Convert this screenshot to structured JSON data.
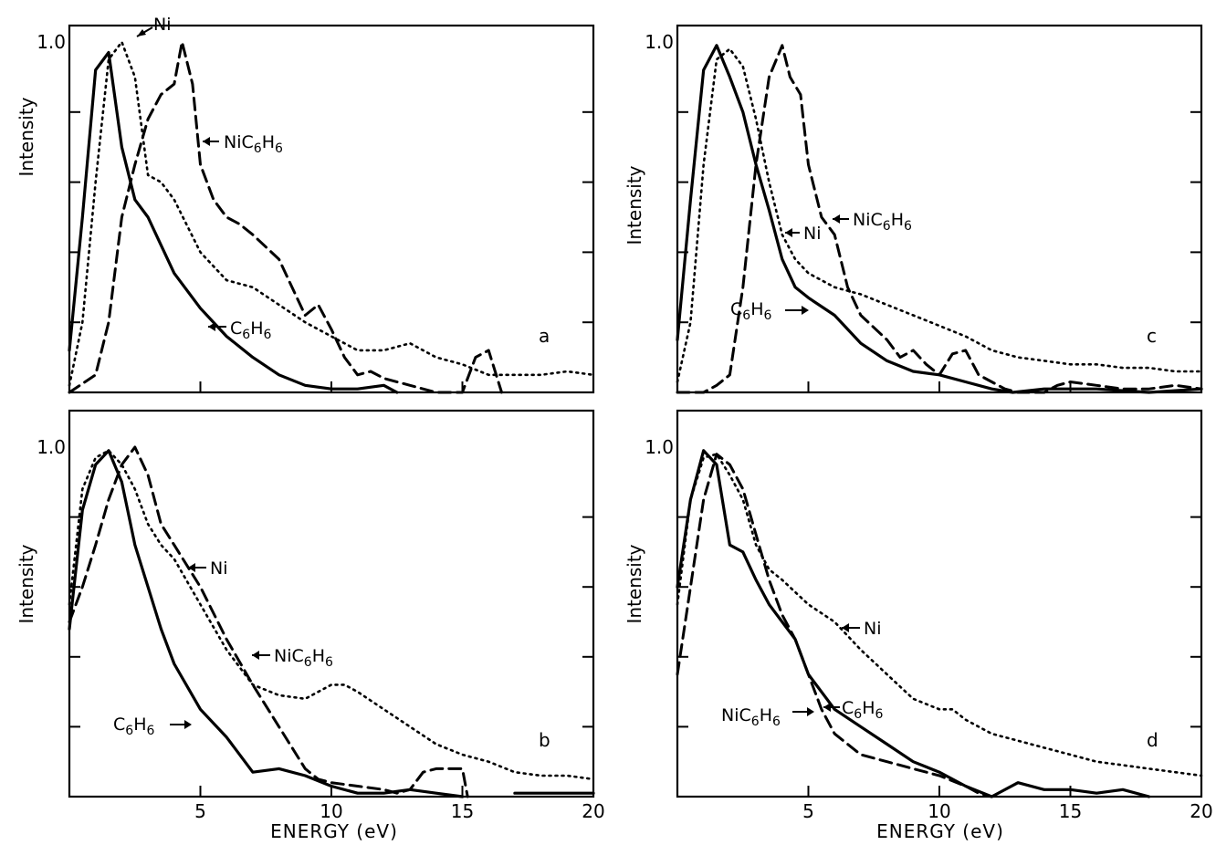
{
  "labels": {
    "ylabel": "Intensity",
    "xlabel": "ENERGY (eV)"
  },
  "chart_data": [
    {
      "type": "line",
      "panel": "a",
      "xlim": [
        0,
        20
      ],
      "ylim": [
        0,
        1.0
      ],
      "xticks": [
        "5",
        "10",
        "15",
        "20"
      ],
      "yticks": [
        "1.0"
      ],
      "series": [
        {
          "name": "C6H6",
          "style": "solid",
          "x": [
            0,
            0.5,
            1,
            1.5,
            2,
            2.5,
            3,
            3.5,
            4,
            5,
            6,
            7,
            8,
            9,
            10,
            11,
            12,
            12.5
          ],
          "y": [
            0.12,
            0.5,
            0.92,
            0.97,
            0.7,
            0.55,
            0.5,
            0.42,
            0.34,
            0.24,
            0.16,
            0.1,
            0.05,
            0.02,
            0.01,
            0.01,
            0.02,
            0
          ]
        },
        {
          "name": "Ni",
          "style": "dotted",
          "x": [
            0,
            0.5,
            1,
            1.5,
            2,
            2.5,
            3,
            3.5,
            4,
            5,
            6,
            7,
            8,
            9,
            10,
            11,
            12,
            13,
            14,
            15,
            16,
            17,
            18,
            19,
            20
          ],
          "y": [
            0.02,
            0.2,
            0.6,
            0.95,
            1.0,
            0.9,
            0.62,
            0.6,
            0.55,
            0.4,
            0.32,
            0.3,
            0.25,
            0.2,
            0.16,
            0.12,
            0.12,
            0.14,
            0.1,
            0.08,
            0.05,
            0.05,
            0.05,
            0.06,
            0.05
          ]
        },
        {
          "name": "NiC6H6",
          "style": "dashed",
          "x": [
            0,
            1,
            1.5,
            2,
            2.5,
            3,
            3.5,
            4,
            4.3,
            4.7,
            5,
            5.5,
            6,
            6.5,
            7,
            8,
            8.5,
            9,
            9.5,
            10,
            10.5,
            11,
            11.5,
            12,
            13,
            14,
            15,
            15.5,
            16,
            16.5
          ],
          "y": [
            0,
            0.05,
            0.2,
            0.5,
            0.65,
            0.78,
            0.85,
            0.88,
            1.0,
            0.88,
            0.65,
            0.55,
            0.5,
            0.48,
            0.45,
            0.38,
            0.3,
            0.22,
            0.25,
            0.18,
            0.1,
            0.05,
            0.06,
            0.04,
            0.02,
            0,
            0,
            0.1,
            0.12,
            0
          ]
        }
      ],
      "annotations": [
        "Ni",
        "NiC6H6",
        "C6H6"
      ]
    },
    {
      "type": "line",
      "panel": "b",
      "xlim": [
        0,
        20
      ],
      "ylim": [
        0,
        1.0
      ],
      "xticks": [
        "5",
        "10",
        "15",
        "20"
      ],
      "yticks": [
        "1.0"
      ],
      "series": [
        {
          "name": "C6H6",
          "style": "solid",
          "x": [
            0,
            0.5,
            1,
            1.5,
            2,
            2.5,
            3,
            3.5,
            4,
            5,
            6,
            7,
            8,
            9,
            10,
            11,
            12,
            13,
            14,
            15
          ],
          "y": [
            0.48,
            0.82,
            0.95,
            0.99,
            0.9,
            0.72,
            0.6,
            0.48,
            0.38,
            0.25,
            0.17,
            0.07,
            0.08,
            0.06,
            0.03,
            0.01,
            0.01,
            0.02,
            0.01,
            0
          ]
        },
        {
          "name": "Ni",
          "style": "dotted",
          "x": [
            0,
            0.5,
            1,
            1.5,
            2,
            2.5,
            3,
            3.5,
            4,
            5,
            6,
            7,
            8,
            9,
            10,
            10.5,
            11,
            12,
            13,
            14,
            15,
            16,
            17,
            18,
            19,
            20
          ],
          "y": [
            0.55,
            0.88,
            0.97,
            0.99,
            0.95,
            0.88,
            0.78,
            0.72,
            0.68,
            0.55,
            0.42,
            0.32,
            0.29,
            0.28,
            0.32,
            0.32,
            0.3,
            0.25,
            0.2,
            0.15,
            0.12,
            0.1,
            0.07,
            0.06,
            0.06,
            0.05
          ]
        },
        {
          "name": "NiC6H6",
          "style": "dashed",
          "x": [
            0,
            0.5,
            1,
            1.5,
            2,
            2.5,
            3,
            3.5,
            4,
            5,
            6,
            7,
            8,
            9,
            9.5,
            10,
            11,
            12,
            12.5,
            13,
            13.5,
            14,
            15,
            15.2
          ],
          "y": [
            0.5,
            0.6,
            0.72,
            0.85,
            0.95,
            1.0,
            0.92,
            0.78,
            0.72,
            0.6,
            0.45,
            0.32,
            0.2,
            0.08,
            0.05,
            0.04,
            0.03,
            0.02,
            0.01,
            0.02,
            0.07,
            0.08,
            0.08,
            0
          ]
        },
        {
          "name": "",
          "style": "solid",
          "x": [
            17,
            20
          ],
          "y": [
            0.01,
            0.01
          ]
        }
      ],
      "annotations": [
        "Ni",
        "NiC6H6",
        "C6H6"
      ]
    },
    {
      "type": "line",
      "panel": "c",
      "xlim": [
        0,
        20
      ],
      "ylim": [
        0,
        1.0
      ],
      "xticks": [
        "5",
        "10",
        "15",
        "20"
      ],
      "yticks": [
        "1.0"
      ],
      "series": [
        {
          "name": "C6H6",
          "style": "solid",
          "x": [
            0,
            0.5,
            1,
            1.5,
            2,
            2.5,
            3,
            3.5,
            4,
            4.5,
            5,
            6,
            7,
            8,
            9,
            10,
            11,
            12,
            12.8,
            14,
            16,
            18,
            20
          ],
          "y": [
            0.15,
            0.55,
            0.92,
            0.99,
            0.9,
            0.8,
            0.65,
            0.52,
            0.38,
            0.3,
            0.27,
            0.22,
            0.14,
            0.09,
            0.06,
            0.05,
            0.03,
            0.01,
            0,
            0.01,
            0.01,
            0,
            0.01
          ]
        },
        {
          "name": "Ni",
          "style": "dotted",
          "x": [
            0,
            0.5,
            1,
            1.5,
            2,
            2.5,
            3,
            3.5,
            4,
            4.5,
            5,
            6,
            7,
            8,
            9,
            10,
            11,
            12,
            13,
            14,
            15,
            16,
            17,
            18,
            19,
            20
          ],
          "y": [
            0.03,
            0.2,
            0.65,
            0.95,
            0.98,
            0.93,
            0.78,
            0.6,
            0.45,
            0.38,
            0.34,
            0.3,
            0.28,
            0.25,
            0.22,
            0.19,
            0.16,
            0.12,
            0.1,
            0.09,
            0.08,
            0.08,
            0.07,
            0.07,
            0.06,
            0.06
          ]
        },
        {
          "name": "NiC6H6",
          "style": "dashed",
          "x": [
            0,
            1,
            1.5,
            2,
            2.5,
            3,
            3.5,
            4,
            4.3,
            4.7,
            5,
            5.5,
            6,
            6.5,
            7,
            8,
            8.5,
            9,
            9.5,
            10,
            10.5,
            11,
            11.5,
            12,
            12.5,
            13,
            14,
            14.5,
            15,
            16,
            17,
            18,
            19,
            20
          ],
          "y": [
            0,
            0,
            0.02,
            0.05,
            0.3,
            0.65,
            0.9,
            0.99,
            0.9,
            0.85,
            0.65,
            0.5,
            0.45,
            0.3,
            0.22,
            0.15,
            0.1,
            0.12,
            0.08,
            0.05,
            0.11,
            0.12,
            0.05,
            0.03,
            0.01,
            0,
            0,
            0.02,
            0.03,
            0.02,
            0.01,
            0.01,
            0.02,
            0.01
          ]
        }
      ],
      "annotations": [
        "Ni",
        "NiC6H6",
        "C6H6"
      ]
    },
    {
      "type": "line",
      "panel": "d",
      "xlim": [
        0,
        20
      ],
      "ylim": [
        0,
        1.0
      ],
      "xticks": [
        "5",
        "10",
        "15",
        "20"
      ],
      "yticks": [
        "1.0"
      ],
      "series": [
        {
          "name": "C6H6",
          "style": "solid",
          "x": [
            0,
            0.5,
            1,
            1.5,
            2,
            2.5,
            3,
            3.5,
            4,
            4.5,
            5,
            6,
            7,
            8,
            9,
            10,
            11,
            12,
            13,
            14,
            15,
            16,
            17,
            18
          ],
          "y": [
            0.6,
            0.85,
            0.99,
            0.95,
            0.72,
            0.7,
            0.62,
            0.55,
            0.5,
            0.45,
            0.35,
            0.25,
            0.2,
            0.15,
            0.1,
            0.07,
            0.03,
            0,
            0.04,
            0.02,
            0.02,
            0.01,
            0.02,
            0
          ]
        },
        {
          "name": "Ni",
          "style": "dotted",
          "x": [
            0,
            0.5,
            1,
            1.5,
            2,
            2.5,
            3,
            3.5,
            4,
            5,
            6,
            7,
            8,
            9,
            10,
            10.5,
            11,
            12,
            13,
            14,
            15,
            16,
            17,
            18,
            19,
            20
          ],
          "y": [
            0.55,
            0.85,
            0.97,
            0.98,
            0.92,
            0.85,
            0.72,
            0.65,
            0.62,
            0.55,
            0.5,
            0.42,
            0.35,
            0.28,
            0.25,
            0.25,
            0.22,
            0.18,
            0.16,
            0.14,
            0.12,
            0.1,
            0.09,
            0.08,
            0.07,
            0.06
          ]
        },
        {
          "name": "NiC6H6",
          "style": "dashed",
          "x": [
            0,
            0.5,
            1,
            1.5,
            2,
            2.5,
            3,
            3.5,
            4,
            4.5,
            5,
            5.5,
            6,
            7,
            8,
            9,
            10,
            11,
            11.5,
            12
          ],
          "y": [
            0.35,
            0.6,
            0.85,
            0.98,
            0.95,
            0.88,
            0.75,
            0.62,
            0.52,
            0.45,
            0.35,
            0.25,
            0.18,
            0.12,
            0.1,
            0.08,
            0.06,
            0.03,
            0.01,
            0
          ]
        }
      ],
      "annotations": [
        "Ni",
        "C6H6",
        "NiC6H6"
      ]
    }
  ]
}
